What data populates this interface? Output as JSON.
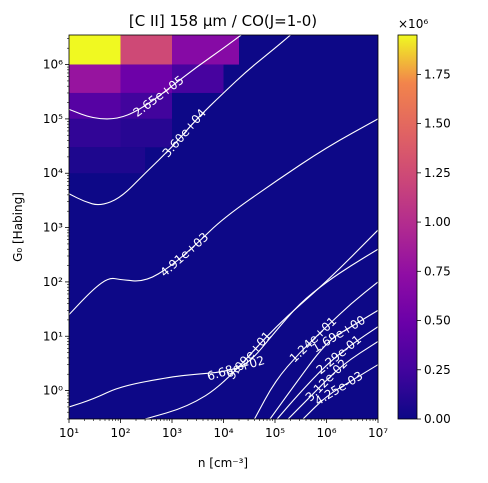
{
  "chart_data": {
    "type": "heatmap",
    "title": "[C II] 158 μm / CO(J=1-0)",
    "xlabel": "n [cm⁻³]",
    "ylabel": "G₀ [Habing]",
    "x_scale": "log",
    "y_scale": "log",
    "xlim": [
      10,
      10000000
    ],
    "ylim": [
      0.3,
      3500000
    ],
    "x_ticks": [
      {
        "value": 10,
        "label": "10¹"
      },
      {
        "value": 100,
        "label": "10²"
      },
      {
        "value": 1000,
        "label": "10³"
      },
      {
        "value": 10000,
        "label": "10⁴"
      },
      {
        "value": 100000,
        "label": "10⁵"
      },
      {
        "value": 1000000,
        "label": "10⁶"
      },
      {
        "value": 10000000,
        "label": "10⁷"
      }
    ],
    "y_ticks": [
      {
        "value": 1,
        "label": "10⁰"
      },
      {
        "value": 10,
        "label": "10¹"
      },
      {
        "value": 100,
        "label": "10²"
      },
      {
        "value": 1000,
        "label": "10³"
      },
      {
        "value": 10000,
        "label": "10⁴"
      },
      {
        "value": 100000,
        "label": "10⁵"
      },
      {
        "value": 1000000,
        "label": "10⁶"
      }
    ],
    "colormap": "plasma",
    "colorbar": {
      "min": 0,
      "max": 1950000,
      "multiplier_label": "×10⁶",
      "ticks": [
        {
          "value": 0,
          "label": "0.00"
        },
        {
          "value": 250000,
          "label": "0.25"
        },
        {
          "value": 500000,
          "label": "0.50"
        },
        {
          "value": 750000,
          "label": "0.75"
        },
        {
          "value": 1000000,
          "label": "1.00"
        },
        {
          "value": 1250000,
          "label": "1.25"
        },
        {
          "value": 1500000,
          "label": "1.50"
        },
        {
          "value": 1750000,
          "label": "1.75"
        }
      ]
    },
    "contours": [
      {
        "level": 265000,
        "label": "2.65e+05",
        "points": [
          [
            10,
            150000
          ],
          [
            30,
            100000
          ],
          [
            100,
            100000
          ],
          [
            300,
            170000
          ],
          [
            1000,
            400000
          ],
          [
            3000,
            900000
          ],
          [
            10000,
            2000000
          ],
          [
            22000,
            3500000
          ]
        ]
      },
      {
        "level": 36000,
        "label": "3.60e+04",
        "points": [
          [
            10,
            4200
          ],
          [
            20,
            3000
          ],
          [
            40,
            2500
          ],
          [
            100,
            3500
          ],
          [
            300,
            10000
          ],
          [
            1000,
            30000
          ],
          [
            3000,
            100000
          ],
          [
            10000,
            300000
          ],
          [
            30000,
            800000
          ],
          [
            100000,
            2000000
          ],
          [
            200000,
            3500000
          ]
        ]
      },
      {
        "level": 4910,
        "label": "4.91e+03",
        "points": [
          [
            10,
            25
          ],
          [
            30,
            75
          ],
          [
            60,
            120
          ],
          [
            100,
            110
          ],
          [
            300,
            100
          ],
          [
            1000,
            200
          ],
          [
            3000,
            500
          ],
          [
            10000,
            1500
          ],
          [
            100000,
            7000
          ],
          [
            1000000,
            30000
          ],
          [
            10000000,
            100000
          ]
        ]
      },
      {
        "level": 668,
        "label": "6.68e+02",
        "points": [
          [
            10,
            0.5
          ],
          [
            30,
            0.7
          ],
          [
            100,
            1.2
          ],
          [
            1000,
            1.8
          ],
          [
            3000,
            2.0
          ],
          [
            10000,
            2.2
          ],
          [
            30000,
            3
          ],
          [
            100000,
            12
          ],
          [
            300000,
            40
          ],
          [
            1000000,
            100
          ],
          [
            3000000,
            200
          ],
          [
            10000000,
            400
          ]
        ]
      },
      {
        "level": 90.9,
        "label": "9.09e+01",
        "points": [
          [
            300,
            0.3
          ],
          [
            2000,
            0.5
          ],
          [
            10000,
            1.3
          ],
          [
            100000,
            15
          ],
          [
            1000000,
            100
          ],
          [
            10000000,
            900
          ]
        ]
      },
      {
        "level": 12.4,
        "label": "1.24e+01",
        "points": [
          [
            40000,
            0.3
          ],
          [
            100000,
            1.5
          ],
          [
            300000,
            5
          ],
          [
            1000000,
            15
          ],
          [
            3000000,
            40
          ],
          [
            10000000,
            100
          ]
        ]
      },
      {
        "level": 1.69,
        "label": "1.69e+00",
        "points": [
          [
            80000,
            0.3
          ],
          [
            200000,
            1
          ],
          [
            1000000,
            8
          ],
          [
            3000000,
            15
          ],
          [
            10000000,
            30
          ]
        ]
      },
      {
        "level": 0.229,
        "label": "2.29e-01",
        "points": [
          [
            110000,
            0.3
          ],
          [
            300000,
            0.9
          ],
          [
            1000000,
            3
          ],
          [
            3000000,
            7
          ],
          [
            10000000,
            15
          ]
        ]
      },
      {
        "level": 0.0312,
        "label": "3.12e-02",
        "points": [
          [
            180000,
            0.3
          ],
          [
            500000,
            0.8
          ],
          [
            2000000,
            3
          ],
          [
            10000000,
            8
          ]
        ]
      },
      {
        "level": 0.00425,
        "label": "4.25e-03",
        "points": [
          [
            350000,
            0.3
          ],
          [
            1000000,
            0.8
          ],
          [
            3000000,
            1.5
          ],
          [
            10000000,
            3
          ]
        ]
      }
    ],
    "hot_region": [
      {
        "x_from": 10,
        "x_to": 100,
        "y_from": 1000000,
        "y_to": 3500000,
        "value": 1950000
      },
      {
        "x_from": 100,
        "x_to": 1000,
        "y_from": 1000000,
        "y_to": 3500000,
        "value": 1100000
      },
      {
        "x_from": 1000,
        "x_to": 20000,
        "y_from": 1000000,
        "y_to": 3500000,
        "value": 600000
      },
      {
        "x_from": 10,
        "x_to": 100,
        "y_from": 300000,
        "y_to": 1000000,
        "value": 700000
      },
      {
        "x_from": 100,
        "x_to": 1000,
        "y_from": 300000,
        "y_to": 1000000,
        "value": 450000
      },
      {
        "x_from": 1000,
        "x_to": 10000,
        "y_from": 300000,
        "y_to": 1000000,
        "value": 250000
      },
      {
        "x_from": 10,
        "x_to": 100,
        "y_from": 100000,
        "y_to": 300000,
        "value": 330000
      },
      {
        "x_from": 100,
        "x_to": 1000,
        "y_from": 100000,
        "y_to": 300000,
        "value": 220000
      },
      {
        "x_from": 10,
        "x_to": 100,
        "y_from": 30000,
        "y_to": 100000,
        "value": 150000
      },
      {
        "x_from": 100,
        "x_to": 1000,
        "y_from": 30000,
        "y_to": 100000,
        "value": 110000
      },
      {
        "x_from": 10,
        "x_to": 300,
        "y_from": 10000,
        "y_to": 30000,
        "value": 70000
      }
    ]
  }
}
